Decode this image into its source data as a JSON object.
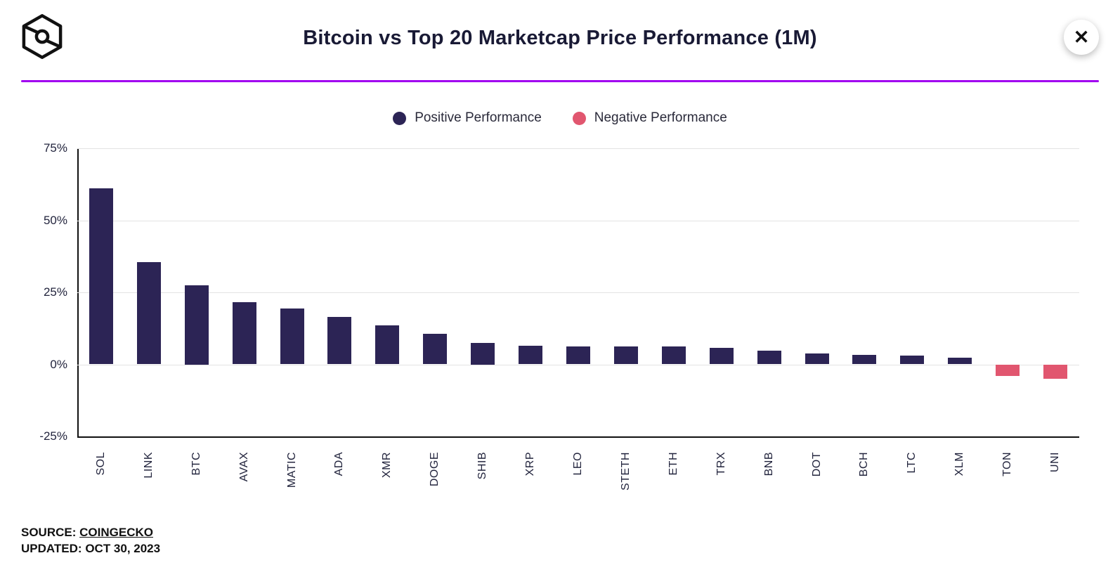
{
  "header": {
    "title": "Bitcoin vs Top 20 Marketcap Price Performance (1M)",
    "close_label": "✕"
  },
  "legend": {
    "positive": "Positive Performance",
    "negative": "Negative Performance"
  },
  "colors": {
    "positive": "#2C2455",
    "negative": "#E1566F",
    "accent_line": "#A100F0",
    "grid": "#E3E3E3",
    "axis": "#111111"
  },
  "chart_data": {
    "type": "bar",
    "title": "Bitcoin vs Top 20 Marketcap Price Performance (1M)",
    "categories": [
      "SOL",
      "LINK",
      "BTC",
      "AVAX",
      "MATIC",
      "ADA",
      "XMR",
      "DOGE",
      "SHIB",
      "XRP",
      "LEO",
      "STETH",
      "ETH",
      "TRX",
      "BNB",
      "DOT",
      "BCH",
      "LTC",
      "XLM",
      "TON",
      "UNI"
    ],
    "values": [
      61,
      35.5,
      27.5,
      21.5,
      19.5,
      16.5,
      13.5,
      10.5,
      7.5,
      6.5,
      6.3,
      6.3,
      6.3,
      5.7,
      4.8,
      3.8,
      3.3,
      3.1,
      2.3,
      -4.0,
      -5.0
    ],
    "xlabel": "",
    "ylabel": "",
    "ylim": [
      -25,
      75
    ],
    "yticks": [
      75,
      50,
      25,
      0,
      -25
    ],
    "ytick_labels": [
      "75%",
      "50%",
      "25%",
      "0%",
      "-25%"
    ],
    "grid": true,
    "legend_position": "top",
    "legend_entries": [
      "Positive Performance",
      "Negative Performance"
    ]
  },
  "footer": {
    "source_label": "SOURCE:",
    "source_link": "COINGECKO",
    "updated_label": "UPDATED:",
    "updated_value": "OCT 30, 2023"
  }
}
